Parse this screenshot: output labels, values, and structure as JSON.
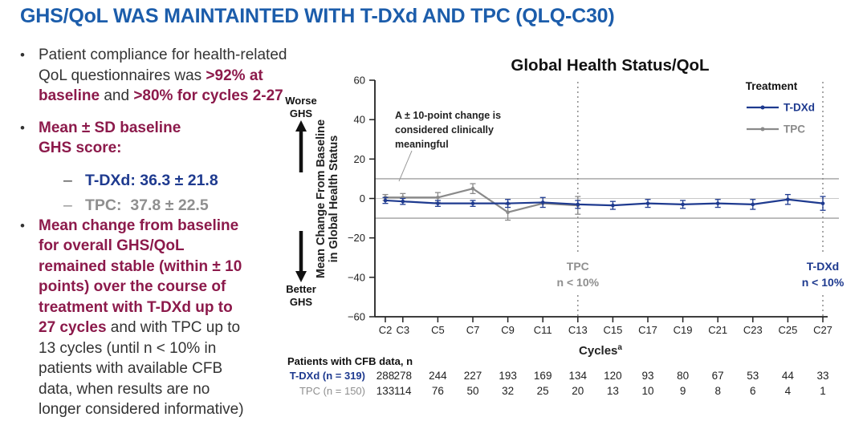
{
  "colors": {
    "title_blue": "#1c5dab",
    "maroon": "#8c1a4b",
    "navy": "#1e3a8f",
    "gray": "#8f8f8f",
    "dark": "#333333"
  },
  "slide": {
    "title": "GHS/QoL WAS MAINTAINTED WITH T-DXd AND TPC (QLQ-C30)"
  },
  "bullets": [
    {
      "segments": [
        {
          "t": "Patient compliance for health-related\nQoL questionnaires was ",
          "s": "dark"
        },
        {
          "t": ">92% at\nbaseline",
          "s": "maroon"
        },
        {
          "t": " and ",
          "s": "dark"
        },
        {
          "t": ">80% for cycles 2-27",
          "s": "maroon"
        }
      ]
    },
    {
      "segments": [
        {
          "t": "Mean ± SD baseline\nGHS score:",
          "s": "maroon"
        }
      ],
      "subitems": [
        {
          "dash": "–",
          "dash_style": "dark",
          "segments": [
            {
              "t": "T-DXd: 36.3 ± 21.8",
              "s": "navy"
            }
          ]
        },
        {
          "dash": "–",
          "dash_style": "gray",
          "segments": [
            {
              "t": "TPC:  37.8 ± 22.5",
              "s": "gray"
            }
          ]
        }
      ]
    },
    {
      "segments": [
        {
          "t": "Mean change from baseline\nfor overall GHS/QoL\nremained stable (within ± 10\npoints) over the course of\ntreatment with T-DXd up to\n27 cycles",
          "s": "maroon"
        },
        {
          "t": " and with TPC up to\n13 cycles (until n < 10% in\npatients with available CFB\ndata, when results are no\nlonger considered informative)",
          "s": "dark"
        }
      ]
    }
  ],
  "chart_data": {
    "type": "line",
    "title": "Global Health Status/QoL",
    "xlabel": "Cycles",
    "xlabel_sup": "a",
    "ylabel_lines": [
      "Mean Change From Baseline",
      "in Global Health Status"
    ],
    "ylim": [
      -60,
      60
    ],
    "yticks": [
      {
        "v": 60,
        "label": "60"
      },
      {
        "v": 40,
        "label": "40"
      },
      {
        "v": 20,
        "label": "20"
      },
      {
        "v": 0,
        "label": "0"
      },
      {
        "v": -20,
        "label": "−20"
      },
      {
        "v": -40,
        "label": "−40"
      },
      {
        "v": -60,
        "label": "−60"
      }
    ],
    "x_cycles": [
      2,
      3,
      5,
      7,
      9,
      11,
      13,
      15,
      17,
      19,
      21,
      23,
      25,
      27
    ],
    "x_labels": [
      "C2",
      "C3",
      "C5",
      "C7",
      "C9",
      "C11",
      "C13",
      "C15",
      "C17",
      "C19",
      "C21",
      "C23",
      "C25",
      "C27"
    ],
    "reference_lines": [
      10,
      0,
      -10
    ],
    "annotation_lines": [
      "A ± 10-point change is",
      "considered clinically",
      "meaningful"
    ],
    "legend_title": "Treatment",
    "legend_order": [
      "T-DXd",
      "TPC"
    ],
    "series": [
      {
        "name": "TPC",
        "color": "#8a8a8a",
        "x": [
          2,
          3,
          5,
          7,
          9,
          11,
          13
        ],
        "values": [
          0.5,
          0.5,
          0.5,
          5,
          -7,
          -2.5,
          -3.5
        ],
        "errors": [
          1.5,
          2,
          2.5,
          2.5,
          4,
          null,
          4.5
        ]
      },
      {
        "name": "T-DXd",
        "color": "#1e3a8f",
        "x": [
          2,
          3,
          5,
          7,
          9,
          11,
          13,
          15,
          17,
          19,
          21,
          23,
          25,
          27
        ],
        "values": [
          -1,
          -1.5,
          -2.5,
          -2.5,
          -2.5,
          -2,
          -3,
          -3.5,
          -2.5,
          -3,
          -2.5,
          -3,
          -0.5,
          -2.5
        ],
        "errors": [
          1.5,
          1.5,
          1.5,
          1.5,
          2,
          2.5,
          2,
          2,
          2,
          2,
          2,
          2.5,
          2.5,
          3.5
        ]
      }
    ],
    "cutoffs": [
      {
        "cycle": 13,
        "line1": "TPC",
        "line2": "n < 10%",
        "color": "#8f8f8f"
      },
      {
        "cycle": 27,
        "line1": "T-DXd",
        "line2": "n < 10%",
        "color": "#1e3a8f"
      }
    ],
    "direction_labels": {
      "worse": [
        "Worse",
        "GHS"
      ],
      "better": [
        "Better",
        "GHS"
      ]
    }
  },
  "table": {
    "header": "Patients with CFB data, n",
    "rows": [
      {
        "label": "T-DXd (n = 319)",
        "style": "navy",
        "values": [
          "288",
          "278",
          "244",
          "227",
          "193",
          "169",
          "134",
          "120",
          "93",
          "80",
          "67",
          "53",
          "44",
          "33"
        ]
      },
      {
        "label": "TPC (n = 150)",
        "style": "gray",
        "values": [
          "133",
          "114",
          "76",
          "50",
          "32",
          "25",
          "20",
          "13",
          "10",
          "9",
          "8",
          "6",
          "4",
          "1"
        ]
      }
    ]
  }
}
